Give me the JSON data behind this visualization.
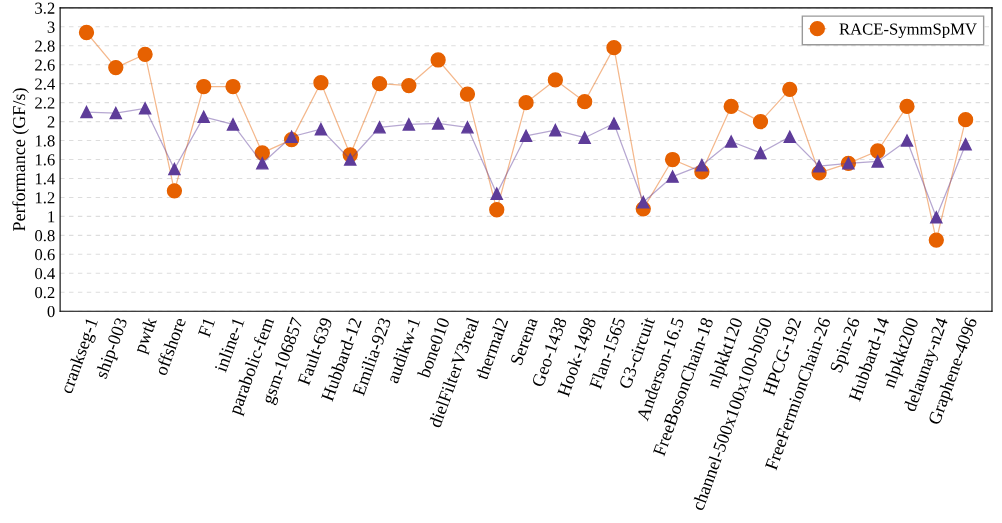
{
  "chart_data": {
    "type": "line",
    "ylabel": "Performance (GF/s)",
    "categories": [
      "crankseg-1",
      "ship-003",
      "pwtk",
      "offshore",
      "F1",
      "inline-1",
      "parabolic-fem",
      "gsm-106857",
      "Fault-639",
      "Hubbard-12",
      "Emilia-923",
      "audikw-1",
      "bone010",
      "dielFilterV3real",
      "thermal2",
      "Serena",
      "Geo-1438",
      "Hook-1498",
      "Flan-1565",
      "G3-circuit",
      "Anderson-16.5",
      "FreeBosonChain-18",
      "nlpkkt120",
      "channel-500x100x100-b050",
      "HPCG-192",
      "FreeFermionChain-26",
      "Spin-26",
      "Hubbard-14",
      "nlpkkt200",
      "delaunay-n24",
      "Graphene-4096"
    ],
    "series": [
      {
        "name": "RACE-SymmSpMV",
        "color": "#e66101",
        "marker": "circle",
        "values": [
          2.94,
          2.57,
          2.71,
          1.27,
          2.37,
          2.37,
          1.67,
          1.81,
          2.41,
          1.65,
          2.4,
          2.38,
          2.65,
          2.29,
          1.07,
          2.2,
          2.44,
          2.21,
          2.78,
          1.08,
          1.6,
          1.47,
          2.16,
          2.0,
          2.34,
          1.46,
          1.56,
          1.69,
          2.16,
          0.75,
          2.02
        ]
      },
      {
        "color": "#5e3c99",
        "marker": "triangle",
        "values": [
          2.1,
          2.09,
          2.14,
          1.5,
          2.05,
          1.97,
          1.56,
          1.84,
          1.92,
          1.6,
          1.94,
          1.97,
          1.98,
          1.94,
          1.24,
          1.85,
          1.91,
          1.83,
          1.98,
          1.15,
          1.42,
          1.54,
          1.79,
          1.67,
          1.84,
          1.53,
          1.56,
          1.58,
          1.8,
          0.99,
          1.76
        ]
      }
    ],
    "ylim": [
      0,
      3.2
    ],
    "yticks": [
      0,
      0.2,
      0.4,
      0.6,
      0.8,
      1,
      1.2,
      1.4,
      1.6,
      1.8,
      2,
      2.2,
      2.4,
      2.6,
      2.8,
      3,
      3.2
    ],
    "grid": "y",
    "legend": "top right",
    "line_style": "solid"
  }
}
